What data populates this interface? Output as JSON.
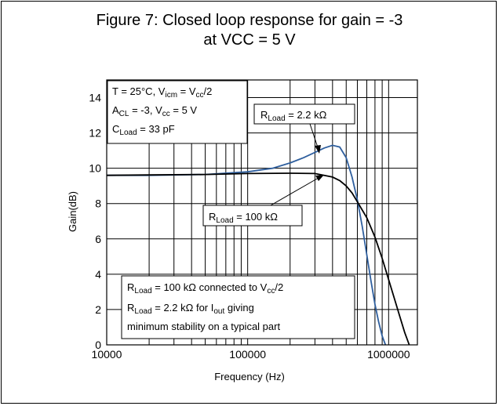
{
  "figure": {
    "title_line1": "Figure 7: Closed loop response for gain = -3",
    "title_line2": "at VCC = 5 V"
  },
  "chart_data": {
    "type": "line",
    "title": "Figure 7: Closed loop response for gain = -3 at VCC = 5 V",
    "xlabel": "Frequency (Hz)",
    "ylabel": "Gain(dB)",
    "xscale": "log",
    "xlim": [
      10000,
      1600000
    ],
    "ylim": [
      0,
      15
    ],
    "grid": true,
    "xtick_labels": [
      "10000",
      "100000",
      "1000000"
    ],
    "ytick_labels": [
      "0",
      "2",
      "4",
      "6",
      "8",
      "10",
      "12",
      "14"
    ],
    "series": [
      {
        "color": "#2f5f9e",
        "x": [
          10000,
          20000,
          50000,
          100000,
          150000,
          200000,
          250000,
          300000,
          350000,
          400000,
          450000,
          500000,
          550000,
          600000,
          650000,
          700000,
          750000,
          800000,
          850000,
          900000,
          950000
        ],
        "y": [
          9.6,
          9.6,
          9.65,
          9.8,
          10.0,
          10.3,
          10.6,
          10.9,
          11.15,
          11.3,
          11.2,
          10.6,
          9.5,
          8.2,
          6.7,
          5.1,
          3.6,
          2.3,
          1.3,
          0.5,
          0.0
        ]
      },
      {
        "color": "#000000",
        "x": [
          10000,
          20000,
          50000,
          100000,
          200000,
          300000,
          400000,
          450000,
          500000,
          550000,
          600000,
          700000,
          800000,
          900000,
          1000000,
          1100000,
          1200000,
          1300000,
          1400000
        ],
        "y": [
          9.6,
          9.62,
          9.65,
          9.7,
          9.72,
          9.7,
          9.5,
          9.3,
          9.0,
          8.6,
          8.1,
          7.2,
          6.1,
          4.9,
          3.7,
          2.6,
          1.6,
          0.7,
          0.0
        ]
      }
    ],
    "annotations": {
      "conditions": {
        "l1_a": "T = 25°C, V",
        "l1_s1": "icm",
        "l1_b": " = V",
        "l1_s2": "cc",
        "l1_c": "/2",
        "l2_a": "A",
        "l2_s1": "CL",
        "l2_b": " = -3, V",
        "l2_s2": "cc",
        "l2_c": " = 5 V",
        "l3_a": "C",
        "l3_s1": "Load",
        "l3_b": " = 33 pF"
      },
      "rload_22": {
        "a": "R",
        "s": "Load",
        "b": " = 2.2 kΩ"
      },
      "rload_100": {
        "a": "R",
        "s": "Load",
        "b": " = 100 kΩ"
      },
      "legend_note": {
        "l1_a": "R",
        "l1_s1": "Load",
        "l1_b": " = 100 kΩ connected to V",
        "l1_s2": "cc",
        "l1_c": "/2",
        "l2_a": "R",
        "l2_s1": "Load",
        "l2_b": " = 2.2 kΩ for I",
        "l2_s2": "out",
        "l2_c": " giving",
        "l3": "minimum stability on a typical part"
      }
    }
  }
}
